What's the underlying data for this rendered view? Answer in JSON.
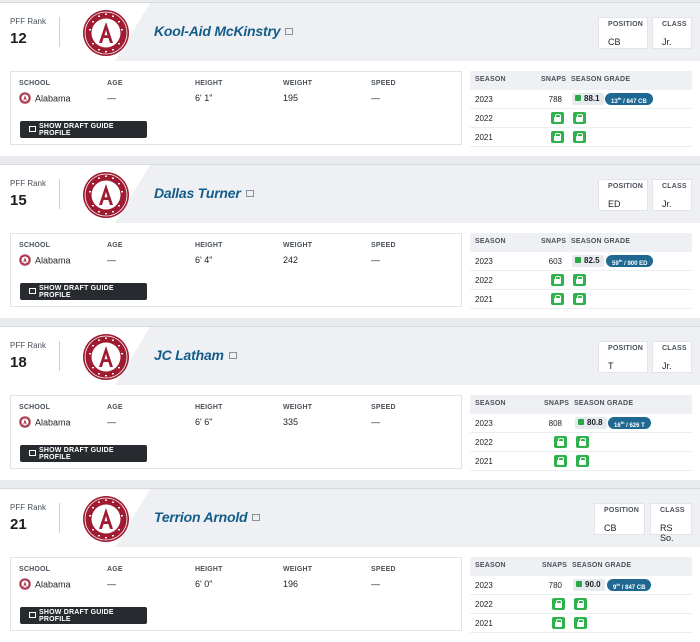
{
  "labels": {
    "pff_rank": "PFF Rank",
    "position": "POSITION",
    "class": "CLASS",
    "school": "SCHOOL",
    "age": "AGE",
    "height": "HEIGHT",
    "weight": "WEIGHT",
    "speed": "SPEED",
    "show_draft_guide": "SHOW DRAFT GUIDE PROFILE",
    "season": "SEASON",
    "snaps": "SNAPS",
    "season_grade": "SEASON GRADE"
  },
  "icons": {
    "team_logo": "alabama-crimson-tide-logo",
    "external_link": "external-link-icon",
    "profile": "profile-card-icon",
    "grade": "green-grade-square",
    "lock": "locked-grade-icon"
  },
  "colors": {
    "crimson": "#9e1b32",
    "name_link": "#145c8a",
    "grade_green": "#28a745",
    "pill_blue": "#1e6892",
    "button_dark": "#272b30"
  },
  "players": [
    {
      "rank": "12",
      "name": "Kool-Aid McKinstry",
      "position": "CB",
      "class": "Jr.",
      "school": "Alabama",
      "age": "—",
      "height": "6' 1\"",
      "weight": "195",
      "speed": "—",
      "seasons": [
        {
          "season": "2023",
          "snaps": "788",
          "grade": "88.1",
          "rank_num": "13",
          "rank_sup": "th",
          "rank_rest": " / 847 CB",
          "locked": false
        },
        {
          "season": "2022",
          "locked": true
        },
        {
          "season": "2021",
          "locked": true
        }
      ]
    },
    {
      "rank": "15",
      "name": "Dallas Turner",
      "position": "ED",
      "class": "Jr.",
      "school": "Alabama",
      "age": "—",
      "height": "6' 4\"",
      "weight": "242",
      "speed": "—",
      "seasons": [
        {
          "season": "2023",
          "snaps": "603",
          "grade": "82.5",
          "rank_num": "59",
          "rank_sup": "th",
          "rank_rest": " / 900 ED",
          "locked": false
        },
        {
          "season": "2022",
          "locked": true
        },
        {
          "season": "2021",
          "locked": true
        }
      ]
    },
    {
      "rank": "18",
      "name": "JC Latham",
      "position": "T",
      "class": "Jr.",
      "school": "Alabama",
      "age": "—",
      "height": "6' 6\"",
      "weight": "335",
      "speed": "—",
      "seasons": [
        {
          "season": "2023",
          "snaps": "808",
          "grade": "80.8",
          "rank_num": "16",
          "rank_sup": "th",
          "rank_rest": " / 626 T",
          "locked": false
        },
        {
          "season": "2022",
          "locked": true
        },
        {
          "season": "2021",
          "locked": true
        }
      ]
    },
    {
      "rank": "21",
      "name": "Terrion Arnold",
      "position": "CB",
      "class": "RS So.",
      "school": "Alabama",
      "age": "—",
      "height": "6' 0\"",
      "weight": "196",
      "speed": "—",
      "seasons": [
        {
          "season": "2023",
          "snaps": "780",
          "grade": "90.0",
          "rank_num": "9",
          "rank_sup": "th",
          "rank_rest": " / 847 CB",
          "locked": false
        },
        {
          "season": "2022",
          "locked": true
        },
        {
          "season": "2021",
          "locked": true
        }
      ]
    }
  ]
}
